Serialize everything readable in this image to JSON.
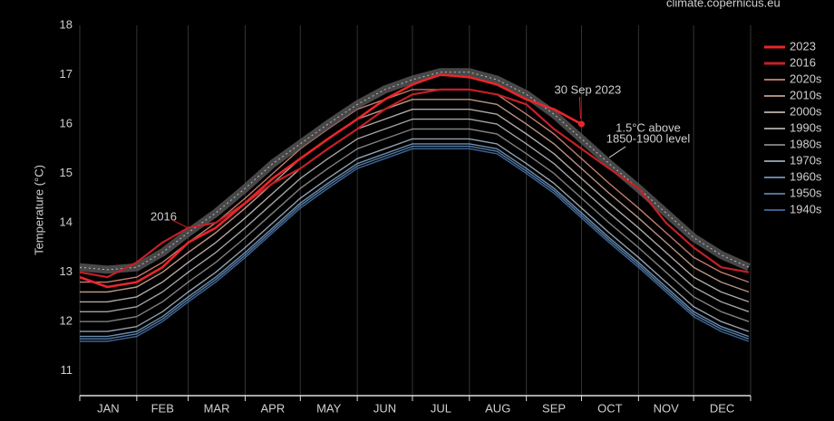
{
  "chart_data": {
    "type": "line",
    "source": "climate.copernicus.eu",
    "ylabel": "Temperature (°C)",
    "ylim": [
      10.5,
      18
    ],
    "yticks": [
      11,
      12,
      13,
      14,
      15,
      16,
      17,
      18
    ],
    "xlim": [
      1,
      366
    ],
    "xticks": [
      1,
      32,
      60,
      91,
      121,
      152,
      182,
      213,
      244,
      274,
      305,
      335,
      366
    ],
    "months": [
      "JAN",
      "FEB",
      "MAR",
      "APR",
      "MAY",
      "JUN",
      "JUL",
      "AUG",
      "SEP",
      "OCT",
      "NOV",
      "DEC"
    ],
    "grid": true,
    "legend": "upper right",
    "x": [
      1,
      16,
      32,
      46,
      60,
      75,
      91,
      106,
      121,
      136,
      152,
      167,
      182,
      197,
      213,
      228,
      244,
      259,
      274,
      289,
      305,
      320,
      335,
      350,
      365
    ],
    "series": [
      {
        "name": "1940s",
        "color": "#4a80c0",
        "values": [
          11.6,
          11.6,
          11.7,
          12.0,
          12.4,
          12.8,
          13.3,
          13.8,
          14.3,
          14.7,
          15.1,
          15.3,
          15.5,
          15.5,
          15.5,
          15.4,
          15.0,
          14.6,
          14.1,
          13.6,
          13.1,
          12.6,
          12.1,
          11.8,
          11.6
        ]
      },
      {
        "name": "1950s",
        "color": "#6a9acc",
        "values": [
          11.65,
          11.65,
          11.75,
          12.05,
          12.45,
          12.85,
          13.35,
          13.85,
          14.35,
          14.75,
          15.15,
          15.35,
          15.55,
          15.55,
          15.55,
          15.45,
          15.05,
          14.65,
          14.15,
          13.65,
          13.15,
          12.65,
          12.15,
          11.85,
          11.65
        ]
      },
      {
        "name": "1960s",
        "color": "#88b0d8",
        "values": [
          11.7,
          11.7,
          11.8,
          12.1,
          12.5,
          12.9,
          13.4,
          13.9,
          14.4,
          14.8,
          15.2,
          15.4,
          15.6,
          15.6,
          15.6,
          15.5,
          15.1,
          14.7,
          14.2,
          13.7,
          13.2,
          12.7,
          12.2,
          11.9,
          11.7
        ]
      },
      {
        "name": "1970s",
        "color": "#b8c8d8",
        "values": [
          11.8,
          11.8,
          11.9,
          12.2,
          12.6,
          13.0,
          13.5,
          14.0,
          14.5,
          14.9,
          15.3,
          15.5,
          15.7,
          15.7,
          15.7,
          15.6,
          15.2,
          14.8,
          14.3,
          13.8,
          13.3,
          12.8,
          12.3,
          12.0,
          11.8
        ]
      },
      {
        "name": "1980s",
        "color": "#a0a0a0",
        "values": [
          12.0,
          12.0,
          12.1,
          12.4,
          12.8,
          13.2,
          13.7,
          14.2,
          14.7,
          15.1,
          15.5,
          15.7,
          15.9,
          15.9,
          15.9,
          15.8,
          15.4,
          15.0,
          14.5,
          14.0,
          13.5,
          13.0,
          12.5,
          12.2,
          12.0
        ]
      },
      {
        "name": "1990s",
        "color": "#cccccc",
        "values": [
          12.2,
          12.2,
          12.3,
          12.6,
          13.0,
          13.4,
          13.9,
          14.4,
          14.9,
          15.3,
          15.7,
          15.9,
          16.1,
          16.1,
          16.1,
          16.0,
          15.6,
          15.2,
          14.7,
          14.2,
          13.7,
          13.2,
          12.7,
          12.4,
          12.2
        ]
      },
      {
        "name": "2000s",
        "color": "#ddd2cc",
        "values": [
          12.4,
          12.4,
          12.5,
          12.8,
          13.2,
          13.6,
          14.1,
          14.6,
          15.1,
          15.5,
          15.9,
          16.1,
          16.3,
          16.3,
          16.3,
          16.2,
          15.8,
          15.4,
          14.9,
          14.4,
          13.9,
          13.4,
          12.9,
          12.6,
          12.4
        ]
      },
      {
        "name": "2010s",
        "color": "#e8bba8",
        "values": [
          12.6,
          12.6,
          12.7,
          13.0,
          13.4,
          13.8,
          14.3,
          14.8,
          15.3,
          15.7,
          16.1,
          16.3,
          16.5,
          16.5,
          16.5,
          16.4,
          16.0,
          15.6,
          15.1,
          14.6,
          14.1,
          13.6,
          13.1,
          12.8,
          12.6
        ]
      },
      {
        "name": "2020s",
        "color": "#f09a88",
        "values": [
          12.8,
          12.8,
          12.9,
          13.2,
          13.6,
          14.0,
          14.5,
          15.0,
          15.5,
          15.9,
          16.3,
          16.5,
          16.7,
          16.7,
          16.7,
          16.6,
          16.2,
          15.8,
          15.3,
          14.8,
          14.3,
          13.8,
          13.3,
          13.0,
          12.8
        ]
      },
      {
        "name": "2016",
        "color": "#c42026",
        "values": [
          13.0,
          12.9,
          13.2,
          13.6,
          13.9,
          14.0,
          14.4,
          14.8,
          15.1,
          15.5,
          15.9,
          16.3,
          16.6,
          16.7,
          16.7,
          16.6,
          16.4,
          15.9,
          15.5,
          15.1,
          14.7,
          14.0,
          13.5,
          13.1,
          13.0
        ]
      },
      {
        "name": "2023",
        "color": "#e8262b",
        "values": [
          12.9,
          12.7,
          12.8,
          13.1,
          13.6,
          13.9,
          14.4,
          14.9,
          15.3,
          15.7,
          16.1,
          16.5,
          16.8,
          17.0,
          16.95,
          16.8,
          16.5,
          16.3,
          16.0,
          null,
          null,
          null,
          null,
          null,
          null
        ]
      }
    ],
    "reference_line": {
      "label": [
        "1.5°C above",
        "1850-1900 level"
      ],
      "values": [
        13.1,
        13.05,
        13.1,
        13.4,
        13.8,
        14.2,
        14.7,
        15.2,
        15.6,
        16.0,
        16.4,
        16.7,
        16.9,
        17.05,
        17.05,
        16.9,
        16.6,
        16.2,
        15.7,
        15.2,
        14.7,
        14.2,
        13.7,
        13.35,
        13.1
      ]
    },
    "annotations": [
      "30 Sep 2023",
      "2016"
    ]
  }
}
